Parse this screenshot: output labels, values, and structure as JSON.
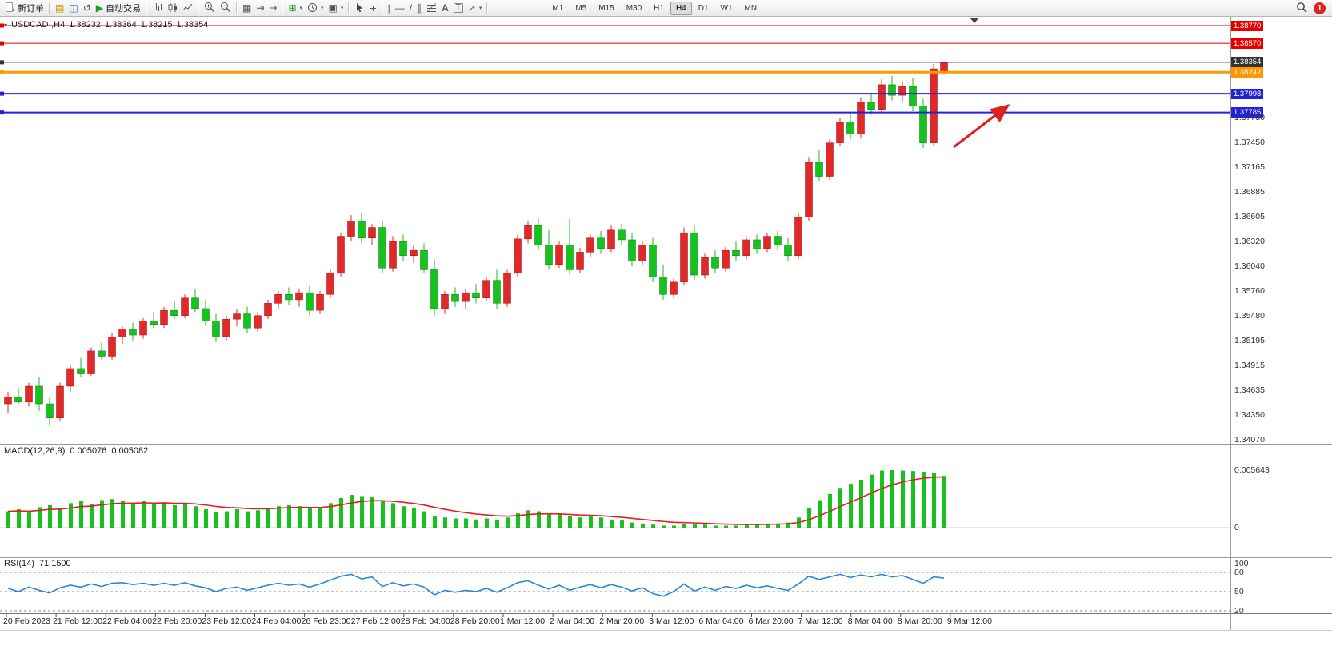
{
  "toolbar": {
    "new_order_label": "新订单",
    "autotrading_label": "自动交易",
    "timeframes": [
      "M1",
      "M5",
      "M15",
      "M30",
      "H1",
      "H4",
      "D1",
      "W1",
      "MN"
    ],
    "active_timeframe": "H4",
    "notification_count": "1"
  },
  "chart": {
    "title": {
      "symbol": "USDCAD·,H4",
      "open": "1.38232",
      "high": "1.38364",
      "low": "1.38215",
      "close": "1.38354"
    },
    "price_lines": [
      {
        "label": "1.38770",
        "color": "#e60000",
        "thickness": 1
      },
      {
        "label": "1.38570",
        "color": "#e60000",
        "thickness": 1
      },
      {
        "label": "1.38354",
        "color": "#333333",
        "thickness": 1
      },
      {
        "label": "1.38242",
        "color": "#ff9900",
        "thickness": 3
      },
      {
        "label": "1.37998",
        "color": "#2222dd",
        "thickness": 2
      },
      {
        "label": "1.37785",
        "color": "#2222dd",
        "thickness": 2
      }
    ],
    "price_axis_ticks": [
      "1.37730",
      "1.37450",
      "1.37165",
      "1.36885",
      "1.36605",
      "1.36320",
      "1.36040",
      "1.35760",
      "1.35480",
      "1.35195",
      "1.34915",
      "1.34635",
      "1.34350",
      "1.34070"
    ],
    "time_axis_labels": [
      "20 Feb 2023",
      "21 Feb 12:00",
      "22 Feb 04:00",
      "22 Feb 20:00",
      "23 Feb 12:00",
      "24 Feb 04:00",
      "26 Feb 23:00",
      "27 Feb 12:00",
      "28 Feb 04:00",
      "28 Feb 20:00",
      "1 Mar 12:00",
      "2 Mar 04:00",
      "2 Mar 20:00",
      "3 Mar 12:00",
      "6 Mar 04:00",
      "6 Mar 20:00",
      "7 Mar 12:00",
      "8 Mar 04:00",
      "8 Mar 20:00",
      "9 Mar 12:00"
    ],
    "macd": {
      "label": "MACD(12,26,9)",
      "value_main": "0.005076",
      "value_signal": "0.005082",
      "axis": [
        "0.005643",
        "0"
      ]
    },
    "rsi": {
      "label": "RSI(14)",
      "value": "71.1500",
      "axis": [
        "100",
        "80",
        "50",
        "20"
      ],
      "levels": [
        80,
        50,
        20
      ]
    },
    "annotation": {
      "type": "arrow",
      "color": "#dd2020"
    }
  },
  "chart_data": {
    "type": "candlestick",
    "symbol": "USDCAD",
    "timeframe": "H4",
    "ylim": [
      1.3401,
      1.3888
    ],
    "up_color": "#e02a2a",
    "down_color": "#17c11e",
    "candles_ohlc": [
      [
        1.3448,
        1.3462,
        1.3438,
        1.3456
      ],
      [
        1.3456,
        1.3466,
        1.3448,
        1.345
      ],
      [
        1.345,
        1.3472,
        1.3445,
        1.3468
      ],
      [
        1.3468,
        1.3478,
        1.344,
        1.3448
      ],
      [
        1.3448,
        1.3455,
        1.3423,
        1.3432
      ],
      [
        1.3432,
        1.3472,
        1.3428,
        1.3468
      ],
      [
        1.3468,
        1.3492,
        1.3462,
        1.3488
      ],
      [
        1.3488,
        1.35,
        1.3478,
        1.3482
      ],
      [
        1.3482,
        1.3512,
        1.348,
        1.3508
      ],
      [
        1.3508,
        1.3518,
        1.3498,
        1.3502
      ],
      [
        1.3502,
        1.3528,
        1.3498,
        1.3524
      ],
      [
        1.3524,
        1.3536,
        1.3516,
        1.3532
      ],
      [
        1.3532,
        1.354,
        1.352,
        1.3526
      ],
      [
        1.3526,
        1.3545,
        1.3522,
        1.3542
      ],
      [
        1.3542,
        1.3552,
        1.3534,
        1.3538
      ],
      [
        1.3538,
        1.3558,
        1.3534,
        1.3554
      ],
      [
        1.3554,
        1.3564,
        1.3544,
        1.3548
      ],
      [
        1.3548,
        1.3572,
        1.3545,
        1.3568
      ],
      [
        1.3568,
        1.3578,
        1.3552,
        1.3556
      ],
      [
        1.3556,
        1.3566,
        1.3536,
        1.3542
      ],
      [
        1.3542,
        1.355,
        1.3518,
        1.3524
      ],
      [
        1.3524,
        1.3548,
        1.352,
        1.3544
      ],
      [
        1.3544,
        1.3556,
        1.3536,
        1.355
      ],
      [
        1.355,
        1.3558,
        1.3528,
        1.3534
      ],
      [
        1.3534,
        1.3552,
        1.353,
        1.3548
      ],
      [
        1.3548,
        1.3566,
        1.3544,
        1.3562
      ],
      [
        1.3562,
        1.3576,
        1.3556,
        1.3572
      ],
      [
        1.3572,
        1.358,
        1.356,
        1.3566
      ],
      [
        1.3566,
        1.3578,
        1.3558,
        1.3574
      ],
      [
        1.3574,
        1.3582,
        1.3548,
        1.3554
      ],
      [
        1.3554,
        1.3576,
        1.355,
        1.3572
      ],
      [
        1.3572,
        1.36,
        1.3568,
        1.3596
      ],
      [
        1.3596,
        1.3642,
        1.3592,
        1.3638
      ],
      [
        1.3638,
        1.3662,
        1.3632,
        1.3655
      ],
      [
        1.3655,
        1.3665,
        1.363,
        1.3636
      ],
      [
        1.3636,
        1.3652,
        1.3628,
        1.3648
      ],
      [
        1.3648,
        1.3656,
        1.3596,
        1.3602
      ],
      [
        1.3602,
        1.3638,
        1.3598,
        1.3632
      ],
      [
        1.3632,
        1.364,
        1.361,
        1.3616
      ],
      [
        1.3616,
        1.3628,
        1.3608,
        1.3622
      ],
      [
        1.3622,
        1.363,
        1.3596,
        1.36
      ],
      [
        1.36,
        1.3612,
        1.3548,
        1.3556
      ],
      [
        1.3556,
        1.3576,
        1.355,
        1.3572
      ],
      [
        1.3572,
        1.358,
        1.3558,
        1.3564
      ],
      [
        1.3564,
        1.3578,
        1.3556,
        1.3574
      ],
      [
        1.3574,
        1.3584,
        1.3562,
        1.3568
      ],
      [
        1.3568,
        1.3592,
        1.3564,
        1.3588
      ],
      [
        1.3588,
        1.36,
        1.3556,
        1.3562
      ],
      [
        1.3562,
        1.36,
        1.3558,
        1.3596
      ],
      [
        1.3596,
        1.364,
        1.3592,
        1.3635
      ],
      [
        1.3635,
        1.3656,
        1.363,
        1.365
      ],
      [
        1.365,
        1.3658,
        1.3622,
        1.3628
      ],
      [
        1.3628,
        1.3645,
        1.36,
        1.3606
      ],
      [
        1.3606,
        1.3632,
        1.3602,
        1.3628
      ],
      [
        1.3628,
        1.3658,
        1.3595,
        1.36
      ],
      [
        1.36,
        1.3625,
        1.3596,
        1.362
      ],
      [
        1.362,
        1.364,
        1.3614,
        1.3636
      ],
      [
        1.3636,
        1.3644,
        1.3618,
        1.3624
      ],
      [
        1.3624,
        1.365,
        1.362,
        1.3645
      ],
      [
        1.3645,
        1.3652,
        1.3628,
        1.3634
      ],
      [
        1.3634,
        1.3642,
        1.3604,
        1.361
      ],
      [
        1.361,
        1.3632,
        1.3606,
        1.3628
      ],
      [
        1.3628,
        1.3636,
        1.3586,
        1.3592
      ],
      [
        1.3592,
        1.3606,
        1.3566,
        1.3572
      ],
      [
        1.3572,
        1.359,
        1.3568,
        1.3586
      ],
      [
        1.3586,
        1.3648,
        1.3582,
        1.3642
      ],
      [
        1.3642,
        1.365,
        1.3588,
        1.3594
      ],
      [
        1.3594,
        1.3618,
        1.359,
        1.3614
      ],
      [
        1.3614,
        1.3622,
        1.3596,
        1.3602
      ],
      [
        1.3602,
        1.3626,
        1.3598,
        1.3622
      ],
      [
        1.3622,
        1.3632,
        1.361,
        1.3616
      ],
      [
        1.3616,
        1.3638,
        1.3612,
        1.3634
      ],
      [
        1.3634,
        1.364,
        1.3618,
        1.3624
      ],
      [
        1.3624,
        1.3642,
        1.362,
        1.3638
      ],
      [
        1.3638,
        1.3644,
        1.3622,
        1.3628
      ],
      [
        1.3628,
        1.3636,
        1.361,
        1.3616
      ],
      [
        1.3616,
        1.3665,
        1.3612,
        1.366
      ],
      [
        1.366,
        1.3728,
        1.3655,
        1.3722
      ],
      [
        1.3722,
        1.3736,
        1.37,
        1.3706
      ],
      [
        1.3706,
        1.3748,
        1.3702,
        1.3744
      ],
      [
        1.3744,
        1.3772,
        1.374,
        1.3768
      ],
      [
        1.3768,
        1.3778,
        1.3748,
        1.3754
      ],
      [
        1.3754,
        1.3796,
        1.375,
        1.379
      ],
      [
        1.379,
        1.38,
        1.3776,
        1.3782
      ],
      [
        1.3782,
        1.3816,
        1.3778,
        1.381
      ],
      [
        1.381,
        1.382,
        1.3792,
        1.3798
      ],
      [
        1.3798,
        1.3814,
        1.379,
        1.3808
      ],
      [
        1.3808,
        1.3818,
        1.378,
        1.3786
      ],
      [
        1.3786,
        1.3794,
        1.3738,
        1.3744
      ],
      [
        1.3744,
        1.3834,
        1.374,
        1.3828
      ],
      [
        1.38232,
        1.38364,
        1.38215,
        1.38354
      ]
    ],
    "macd_range": [
      0,
      0.005643
    ],
    "macd_histogram": [
      0.0016,
      0.0018,
      0.0015,
      0.002,
      0.0022,
      0.0019,
      0.0024,
      0.0026,
      0.0023,
      0.0027,
      0.0028,
      0.0026,
      0.0024,
      0.0026,
      0.0023,
      0.0025,
      0.0022,
      0.0024,
      0.0021,
      0.0018,
      0.0015,
      0.0016,
      0.0018,
      0.0016,
      0.0017,
      0.0019,
      0.0021,
      0.0022,
      0.0021,
      0.0019,
      0.002,
      0.0024,
      0.0029,
      0.0032,
      0.0031,
      0.003,
      0.0026,
      0.0024,
      0.0021,
      0.0019,
      0.0016,
      0.0011,
      0.001,
      0.0009,
      0.0009,
      0.0008,
      0.0009,
      0.0008,
      0.001,
      0.0014,
      0.0017,
      0.0016,
      0.0014,
      0.0013,
      0.0011,
      0.001,
      0.0011,
      0.001,
      0.0008,
      0.0007,
      0.0005,
      0.0004,
      0.0003,
      0.0002,
      0.0002,
      0.0004,
      0.0003,
      0.0003,
      0.0002,
      0.0002,
      0.0002,
      0.0003,
      0.0003,
      0.0004,
      0.0004,
      0.0005,
      0.001,
      0.0019,
      0.0027,
      0.0033,
      0.0039,
      0.0043,
      0.0047,
      0.0052,
      0.0056,
      0.005643,
      0.0056,
      0.00555,
      0.00548,
      0.00535,
      0.005076
    ],
    "rsi_values": [
      55,
      50,
      57,
      52,
      48,
      56,
      60,
      57,
      62,
      58,
      63,
      64,
      61,
      63,
      60,
      63,
      60,
      64,
      59,
      56,
      50,
      55,
      57,
      52,
      56,
      60,
      63,
      60,
      62,
      57,
      62,
      68,
      74,
      77,
      70,
      73,
      58,
      64,
      59,
      62,
      57,
      45,
      52,
      49,
      52,
      50,
      55,
      49,
      56,
      64,
      67,
      60,
      54,
      60,
      52,
      57,
      61,
      56,
      61,
      57,
      51,
      56,
      47,
      43,
      50,
      62,
      51,
      57,
      52,
      58,
      55,
      60,
      56,
      59,
      55,
      52,
      62,
      74,
      69,
      73,
      77,
      72,
      76,
      73,
      77,
      73,
      75,
      69,
      63,
      73,
      71.15
    ],
    "rsi_current": 71.15
  }
}
